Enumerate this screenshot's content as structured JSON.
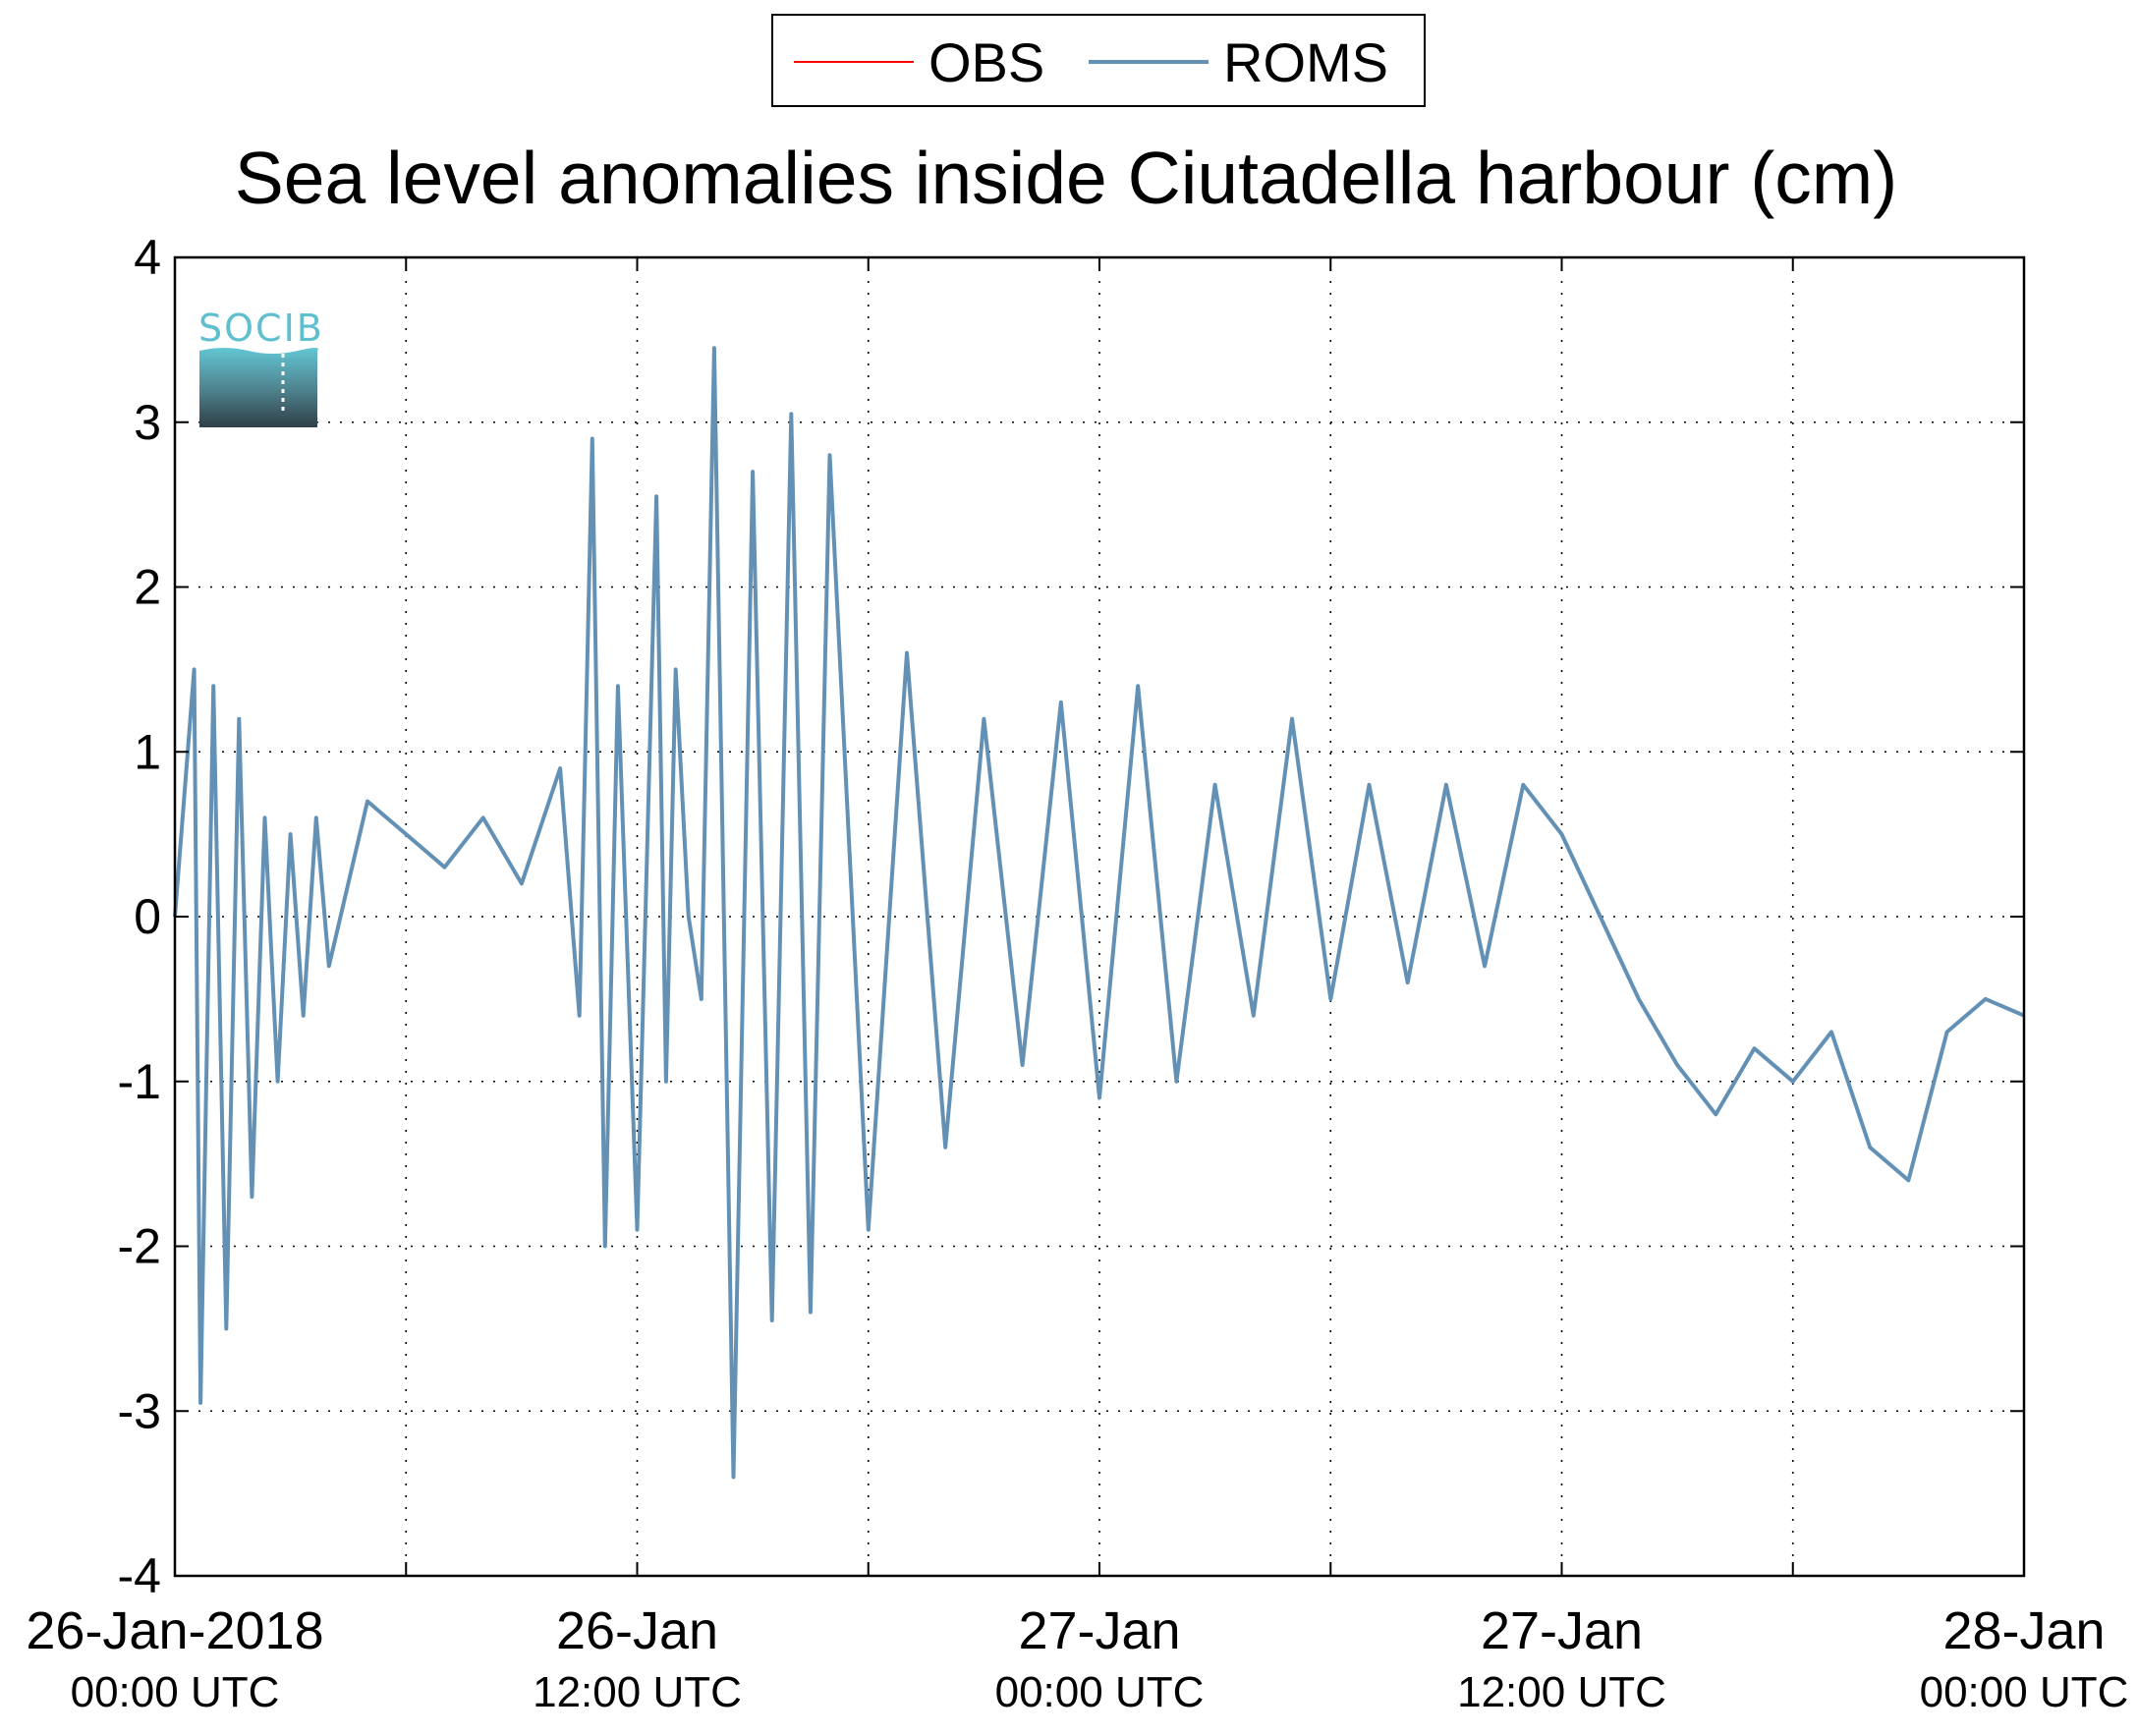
{
  "chart_data": {
    "type": "line",
    "title": "Sea level anomalies inside Ciutadella harbour (cm)",
    "xlabel": "",
    "ylabel": "",
    "ylim": [
      -4,
      4
    ],
    "xlim": [
      "2018-01-26T00:00Z",
      "2018-01-28T00:00Z"
    ],
    "grid": true,
    "legend_position": "top-center",
    "y_ticks": [
      4,
      3,
      2,
      1,
      0,
      -1,
      -2,
      -3,
      -4
    ],
    "x_tick_labels": [
      {
        "date": "26-Jan-2018",
        "time": "00:00 UTC"
      },
      {
        "date": "26-Jan",
        "time": "12:00 UTC"
      },
      {
        "date": "27-Jan",
        "time": "00:00 UTC"
      },
      {
        "date": "27-Jan",
        "time": "12:00 UTC"
      },
      {
        "date": "28-Jan",
        "time": "00:00 UTC"
      }
    ],
    "series": [
      {
        "name": "OBS",
        "color": "#ff0000",
        "x": [],
        "values": []
      },
      {
        "name": "ROMS",
        "color": "#6391b6",
        "x": [
          "2018-01-26T00:00Z",
          "2018-01-26T00:30Z",
          "2018-01-26T00:40Z",
          "2018-01-26T01:00Z",
          "2018-01-26T01:20Z",
          "2018-01-26T01:40Z",
          "2018-01-26T02:00Z",
          "2018-01-26T02:20Z",
          "2018-01-26T02:40Z",
          "2018-01-26T03:00Z",
          "2018-01-26T03:20Z",
          "2018-01-26T03:40Z",
          "2018-01-26T04:00Z",
          "2018-01-26T05:00Z",
          "2018-01-26T06:00Z",
          "2018-01-26T07:00Z",
          "2018-01-26T08:00Z",
          "2018-01-26T09:00Z",
          "2018-01-26T10:00Z",
          "2018-01-26T10:30Z",
          "2018-01-26T10:50Z",
          "2018-01-26T11:10Z",
          "2018-01-26T11:30Z",
          "2018-01-26T12:00Z",
          "2018-01-26T12:30Z",
          "2018-01-26T12:45Z",
          "2018-01-26T13:00Z",
          "2018-01-26T13:20Z",
          "2018-01-26T13:40Z",
          "2018-01-26T14:00Z",
          "2018-01-26T14:30Z",
          "2018-01-26T15:00Z",
          "2018-01-26T15:30Z",
          "2018-01-26T16:00Z",
          "2018-01-26T16:30Z",
          "2018-01-26T17:00Z",
          "2018-01-26T18:00Z",
          "2018-01-26T19:00Z",
          "2018-01-26T20:00Z",
          "2018-01-26T21:00Z",
          "2018-01-26T22:00Z",
          "2018-01-26T23:00Z",
          "2018-01-27T00:00Z",
          "2018-01-27T01:00Z",
          "2018-01-27T02:00Z",
          "2018-01-27T03:00Z",
          "2018-01-27T04:00Z",
          "2018-01-27T05:00Z",
          "2018-01-27T06:00Z",
          "2018-01-27T07:00Z",
          "2018-01-27T08:00Z",
          "2018-01-27T09:00Z",
          "2018-01-27T10:00Z",
          "2018-01-27T11:00Z",
          "2018-01-27T12:00Z",
          "2018-01-27T13:00Z",
          "2018-01-27T14:00Z",
          "2018-01-27T15:00Z",
          "2018-01-27T16:00Z",
          "2018-01-27T17:00Z",
          "2018-01-27T18:00Z",
          "2018-01-27T19:00Z",
          "2018-01-27T20:00Z",
          "2018-01-27T21:00Z",
          "2018-01-27T22:00Z",
          "2018-01-27T23:00Z",
          "2018-01-28T00:00Z"
        ],
        "values": [
          0.0,
          1.5,
          -2.95,
          1.4,
          -2.5,
          1.2,
          -1.7,
          0.6,
          -1.0,
          0.5,
          -0.6,
          0.6,
          -0.3,
          0.7,
          0.5,
          0.3,
          0.6,
          0.2,
          0.9,
          -0.6,
          2.9,
          -2.0,
          1.4,
          -1.9,
          2.55,
          -1.0,
          1.5,
          0.0,
          -0.5,
          3.45,
          -3.4,
          2.7,
          -2.45,
          3.05,
          -2.4,
          2.8,
          -1.9,
          1.6,
          -1.4,
          1.2,
          -0.9,
          1.3,
          -1.1,
          1.4,
          -1.0,
          0.8,
          -0.6,
          1.2,
          -0.5,
          0.8,
          -0.4,
          0.8,
          -0.3,
          0.8,
          0.5,
          0.0,
          -0.5,
          -0.9,
          -1.2,
          -0.8,
          -1.0,
          -0.7,
          -1.4,
          -1.6,
          -0.7,
          -0.5,
          -0.6
        ]
      }
    ]
  },
  "legend": {
    "obs_label": "OBS",
    "roms_label": "ROMS"
  },
  "logo": {
    "text": "SOCIB"
  },
  "colors": {
    "obs": "#ff0000",
    "roms": "#6391b6",
    "grid": "#000000",
    "logo_text": "#5fbfcf"
  }
}
